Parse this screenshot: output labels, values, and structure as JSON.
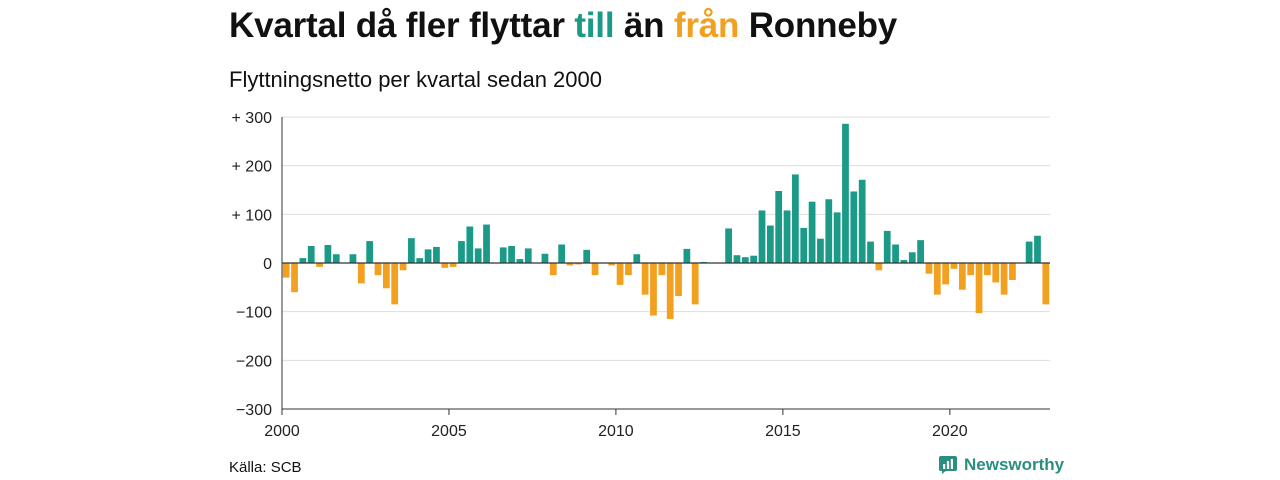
{
  "title": {
    "part1": "Kvartal då fler flyttar ",
    "till": "till",
    "part2": " än ",
    "fran": "från",
    "part3": " Ronneby"
  },
  "subtitle": "Flyttningsnetto per kvartal sedan 2000",
  "source": "Källa: SCB",
  "brand": {
    "name": "Newsworthy",
    "icon": "newsworthy-logo-icon"
  },
  "colors": {
    "positive": "#1a9a87",
    "negative": "#f2a020",
    "grid": "#dddddd",
    "axis": "#333333"
  },
  "chart_data": {
    "type": "bar",
    "title": "Kvartal då fler flyttar till än från Ronneby",
    "subtitle": "Flyttningsnetto per kvartal sedan 2000",
    "xlabel": "",
    "ylabel": "",
    "ylim": [
      -300,
      300
    ],
    "xlim": [
      2000,
      2023
    ],
    "grid": true,
    "legend": "none",
    "y_ticks": [
      300,
      200,
      100,
      0,
      -100,
      -200,
      -300
    ],
    "y_tick_labels": [
      "+ 300",
      "+ 200",
      "+ 100",
      "0",
      "−100",
      "−200",
      "−300"
    ],
    "x_ticks": [
      2000,
      2005,
      2010,
      2015,
      2020
    ],
    "x_tick_labels": [
      "2000",
      "2005",
      "2010",
      "2015",
      "2020"
    ],
    "quarters": [
      "2000 Q1",
      "2000 Q2",
      "2000 Q3",
      "2000 Q4",
      "2001 Q1",
      "2001 Q2",
      "2001 Q3",
      "2001 Q4",
      "2002 Q1",
      "2002 Q2",
      "2002 Q3",
      "2002 Q4",
      "2003 Q1",
      "2003 Q2",
      "2003 Q3",
      "2003 Q4",
      "2004 Q1",
      "2004 Q2",
      "2004 Q3",
      "2004 Q4",
      "2005 Q1",
      "2005 Q2",
      "2005 Q3",
      "2005 Q4",
      "2006 Q1",
      "2006 Q2",
      "2006 Q3",
      "2006 Q4",
      "2007 Q1",
      "2007 Q2",
      "2007 Q3",
      "2007 Q4",
      "2008 Q1",
      "2008 Q2",
      "2008 Q3",
      "2008 Q4",
      "2009 Q1",
      "2009 Q2",
      "2009 Q3",
      "2009 Q4",
      "2010 Q1",
      "2010 Q2",
      "2010 Q3",
      "2010 Q4",
      "2011 Q1",
      "2011 Q2",
      "2011 Q3",
      "2011 Q4",
      "2012 Q1",
      "2012 Q2",
      "2012 Q3",
      "2012 Q4",
      "2013 Q1",
      "2013 Q2",
      "2013 Q3",
      "2013 Q4",
      "2014 Q1",
      "2014 Q2",
      "2014 Q3",
      "2014 Q4",
      "2015 Q1",
      "2015 Q2",
      "2015 Q3",
      "2015 Q4",
      "2016 Q1",
      "2016 Q2",
      "2016 Q3",
      "2016 Q4",
      "2017 Q1",
      "2017 Q2",
      "2017 Q3",
      "2017 Q4",
      "2018 Q1",
      "2018 Q2",
      "2018 Q3",
      "2018 Q4",
      "2019 Q1",
      "2019 Q2",
      "2019 Q3",
      "2019 Q4",
      "2020 Q1",
      "2020 Q2",
      "2020 Q3",
      "2020 Q4",
      "2021 Q1",
      "2021 Q2",
      "2021 Q3",
      "2021 Q4",
      "2022 Q1",
      "2022 Q2",
      "2022 Q3",
      "2022 Q4"
    ],
    "values": [
      -30,
      -60,
      10,
      35,
      -8,
      37,
      18,
      0,
      18,
      -42,
      45,
      -25,
      -52,
      -85,
      -15,
      51,
      10,
      28,
      33,
      -10,
      -8,
      45,
      75,
      30,
      79,
      0,
      32,
      35,
      8,
      30,
      0,
      19,
      -25,
      38,
      -5,
      -3,
      27,
      -25,
      0,
      -5,
      -45,
      -25,
      18,
      -65,
      -108,
      -25,
      -115,
      -68,
      29,
      -85,
      2,
      0,
      0,
      71,
      16,
      12,
      15,
      108,
      77,
      148,
      108,
      182,
      72,
      126,
      50,
      131,
      104,
      286,
      147,
      171,
      44,
      -15,
      66,
      38,
      6,
      22,
      47,
      -22,
      -65,
      -44,
      -12,
      -55,
      -25,
      -103,
      -25,
      -40,
      -65,
      -35,
      0,
      44,
      56,
      -85
    ]
  }
}
